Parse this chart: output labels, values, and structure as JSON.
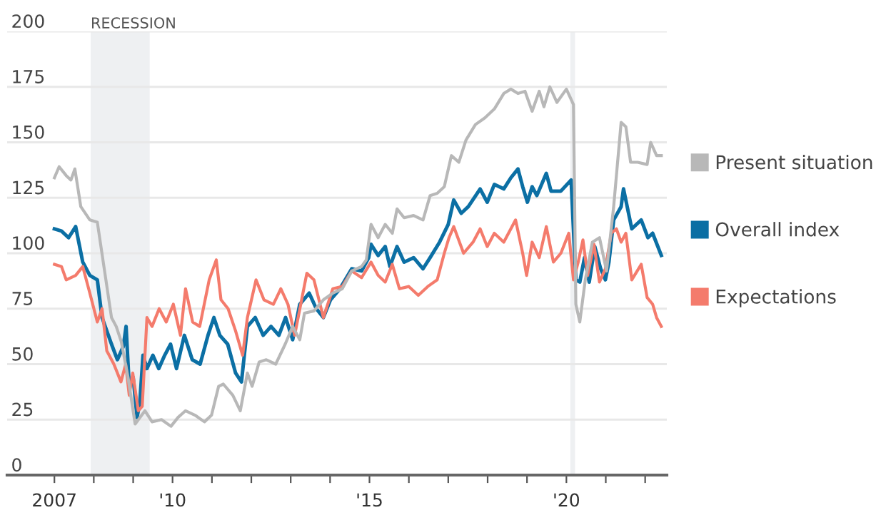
{
  "chart_data": {
    "type": "line",
    "xlim": [
      2005.8,
      2022.55
    ],
    "ylim": [
      0,
      200
    ],
    "xticks": [
      2007,
      {
        "value": 2008,
        "label": null
      },
      {
        "value": 2009,
        "label": null
      },
      {
        "value": 2010,
        "label": "'10"
      },
      {
        "value": 2011,
        "label": null
      },
      {
        "value": 2012,
        "label": null
      },
      {
        "value": 2013,
        "label": null
      },
      {
        "value": 2014,
        "label": null
      },
      {
        "value": 2015,
        "label": "'15"
      },
      {
        "value": 2016,
        "label": null
      },
      {
        "value": 2017,
        "label": null
      },
      {
        "value": 2018,
        "label": null
      },
      {
        "value": 2019,
        "label": null
      },
      {
        "value": 2020,
        "label": "'20"
      },
      {
        "value": 2021,
        "label": null
      },
      {
        "value": 2022,
        "label": null
      }
    ],
    "yticks": [
      0,
      25,
      50,
      75,
      100,
      125,
      150,
      175,
      200
    ],
    "grid": "y",
    "legend": "right",
    "line_style": "solid",
    "marker": "none",
    "bands": [
      {
        "axis": "x",
        "from": 2007.92,
        "to": 2009.42,
        "label": "RECESSION",
        "color": "#eef0f2"
      },
      {
        "axis": "x",
        "from": 2020.1,
        "to": 2020.22,
        "label": null,
        "color": "#eef0f2"
      }
    ],
    "series": [
      {
        "name": "Present situation",
        "color": "#b8b8b8",
        "x": [
          2007.0,
          2007.12,
          2007.3,
          2007.42,
          2007.52,
          2007.67,
          2007.9,
          2008.09,
          2008.45,
          2008.57,
          2008.7,
          2008.87,
          2009.05,
          2009.3,
          2009.48,
          2009.72,
          2009.96,
          2010.14,
          2010.33,
          2010.57,
          2010.81,
          2010.99,
          2011.17,
          2011.29,
          2011.53,
          2011.72,
          2011.9,
          2012.02,
          2012.2,
          2012.38,
          2012.62,
          2012.86,
          2013.05,
          2013.23,
          2013.35,
          2013.59,
          2013.83,
          2014.07,
          2014.31,
          2014.55,
          2014.8,
          2014.92,
          2015.04,
          2015.22,
          2015.4,
          2015.58,
          2015.7,
          2015.88,
          2016.12,
          2016.36,
          2016.54,
          2016.72,
          2016.9,
          2017.08,
          2017.27,
          2017.45,
          2017.69,
          2017.93,
          2018.17,
          2018.41,
          2018.59,
          2018.77,
          2018.95,
          2019.13,
          2019.31,
          2019.43,
          2019.58,
          2019.76,
          2020.0,
          2020.18,
          2020.24,
          2020.34,
          2020.48,
          2020.66,
          2020.84,
          2021.02,
          2021.2,
          2021.39,
          2021.51,
          2021.63,
          2021.81,
          2022.05,
          2022.14,
          2022.29,
          2022.41
        ],
        "values": [
          134,
          139,
          135,
          133,
          138,
          121,
          115,
          114,
          71,
          67,
          60,
          44,
          23,
          29,
          24,
          25,
          22,
          26,
          29,
          27,
          24,
          27,
          40,
          41,
          36,
          29,
          46,
          40,
          51,
          52,
          50,
          59,
          67,
          61,
          73,
          74,
          79,
          82,
          84,
          92,
          94,
          97,
          113,
          107,
          113,
          109,
          120,
          116,
          117,
          115,
          126,
          127,
          130,
          144,
          141,
          151,
          158,
          161,
          165,
          172,
          174,
          172,
          173,
          164,
          173,
          166,
          175,
          168,
          174,
          167,
          77,
          69,
          88,
          105,
          107,
          92,
          121,
          159,
          157,
          141,
          141,
          140,
          150,
          144,
          144
        ]
      },
      {
        "name": "Overall index",
        "color": "#0b6fa4",
        "x": [
          2007.0,
          2007.18,
          2007.36,
          2007.54,
          2007.72,
          2007.9,
          2008.09,
          2008.21,
          2008.45,
          2008.6,
          2008.75,
          2008.82,
          2008.9,
          2009.0,
          2009.1,
          2009.17,
          2009.25,
          2009.35,
          2009.5,
          2009.65,
          2009.8,
          2009.95,
          2010.1,
          2010.3,
          2010.5,
          2010.7,
          2010.9,
          2011.05,
          2011.2,
          2011.4,
          2011.6,
          2011.75,
          2011.9,
          2012.1,
          2012.3,
          2012.5,
          2012.7,
          2012.87,
          2013.05,
          2013.23,
          2013.47,
          2013.65,
          2013.83,
          2014.01,
          2014.25,
          2014.55,
          2014.8,
          2014.98,
          2015.04,
          2015.22,
          2015.4,
          2015.52,
          2015.7,
          2015.88,
          2016.12,
          2016.36,
          2016.54,
          2016.78,
          2017.0,
          2017.14,
          2017.33,
          2017.51,
          2017.81,
          2017.99,
          2018.17,
          2018.41,
          2018.59,
          2018.77,
          2018.89,
          2019.01,
          2019.13,
          2019.25,
          2019.49,
          2019.61,
          2019.86,
          2020.12,
          2020.24,
          2020.34,
          2020.46,
          2020.58,
          2020.72,
          2020.87,
          2020.99,
          2021.08,
          2021.2,
          2021.39,
          2021.45,
          2021.66,
          2021.9,
          2022.07,
          2022.19,
          2022.41
        ],
        "values": [
          111,
          110,
          107,
          112,
          96,
          90,
          88,
          71,
          59,
          52,
          58,
          67,
          40,
          44,
          26,
          33,
          54,
          48,
          54,
          48,
          54,
          59,
          48,
          63,
          52,
          50,
          63,
          71,
          63,
          59,
          46,
          42,
          67,
          71,
          63,
          67,
          63,
          71,
          61,
          77,
          82,
          75,
          71,
          79,
          84,
          93,
          92,
          98,
          104,
          99,
          103,
          94,
          103,
          96,
          98,
          93,
          98,
          105,
          113,
          124,
          118,
          121,
          129,
          123,
          131,
          129,
          134,
          138,
          130,
          123,
          130,
          126,
          136,
          128,
          128,
          133,
          88,
          87,
          98,
          87,
          103,
          93,
          88,
          96,
          115,
          121,
          129,
          111,
          115,
          107,
          109,
          99
        ]
      },
      {
        "name": "Expectations",
        "color": "#f47b6c",
        "x": [
          2007.0,
          2007.18,
          2007.3,
          2007.54,
          2007.72,
          2007.9,
          2008.09,
          2008.21,
          2008.33,
          2008.51,
          2008.69,
          2008.81,
          2008.9,
          2008.99,
          2009.13,
          2009.23,
          2009.35,
          2009.48,
          2009.66,
          2009.84,
          2010.02,
          2010.2,
          2010.33,
          2010.51,
          2010.69,
          2010.93,
          2011.11,
          2011.23,
          2011.41,
          2011.6,
          2011.78,
          2011.9,
          2012.12,
          2012.32,
          2012.56,
          2012.75,
          2012.93,
          2013.1,
          2013.41,
          2013.59,
          2013.83,
          2014.07,
          2014.31,
          2014.55,
          2014.8,
          2015.04,
          2015.22,
          2015.4,
          2015.58,
          2015.76,
          2016.0,
          2016.24,
          2016.48,
          2016.72,
          2016.9,
          2017.02,
          2017.14,
          2017.39,
          2017.63,
          2017.81,
          2017.99,
          2018.17,
          2018.41,
          2018.71,
          2018.89,
          2018.99,
          2019.13,
          2019.31,
          2019.49,
          2019.67,
          2019.86,
          2020.06,
          2020.18,
          2020.3,
          2020.42,
          2020.54,
          2020.7,
          2020.84,
          2020.99,
          2021.14,
          2021.27,
          2021.39,
          2021.51,
          2021.66,
          2021.9,
          2022.05,
          2022.19,
          2022.29,
          2022.41
        ],
        "values": [
          95,
          94,
          88,
          90,
          94,
          82,
          69,
          75,
          56,
          50,
          42,
          50,
          36,
          46,
          29,
          31,
          71,
          67,
          75,
          69,
          77,
          63,
          84,
          69,
          67,
          88,
          97,
          79,
          75,
          65,
          54,
          71,
          88,
          79,
          77,
          84,
          77,
          63,
          91,
          88,
          71,
          84,
          85,
          92,
          89,
          96,
          90,
          87,
          95,
          84,
          85,
          81,
          85,
          88,
          100,
          107,
          112,
          100,
          105,
          111,
          103,
          109,
          105,
          115,
          100,
          90,
          105,
          98,
          112,
          96,
          100,
          109,
          88,
          96,
          106,
          90,
          104,
          87,
          93,
          109,
          111,
          105,
          109,
          88,
          95,
          80,
          77,
          71,
          67
        ]
      }
    ]
  }
}
